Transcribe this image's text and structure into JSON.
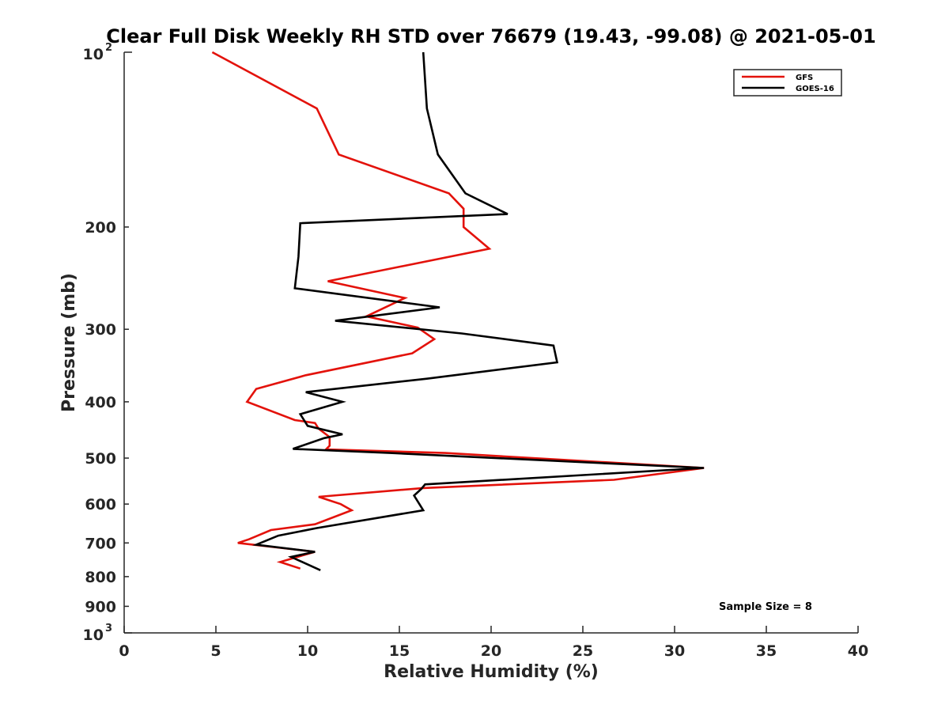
{
  "chart_data": {
    "type": "line",
    "title": "Clear Full Disk Weekly RH STD over 76679 (19.43, -99.08) @ 2021-05-01",
    "xlabel": "Relative Humidity (%)",
    "ylabel": "Pressure (mb)",
    "xlim": [
      0,
      40
    ],
    "ylim": [
      100,
      1000
    ],
    "y_scale": "log",
    "y_reversed": true,
    "grid": false,
    "legend_position": "top-right",
    "x_ticks": [
      "0",
      "5",
      "10",
      "15",
      "20",
      "25",
      "30",
      "35",
      "40"
    ],
    "x_tick_values": [
      0,
      5,
      10,
      15,
      20,
      25,
      30,
      35,
      40
    ],
    "y_ticks": [
      {
        "value": 100,
        "base": "10",
        "exp": "2",
        "label": ""
      },
      {
        "value": 200,
        "base": "",
        "exp": "",
        "label": "200"
      },
      {
        "value": 300,
        "base": "",
        "exp": "",
        "label": "300"
      },
      {
        "value": 400,
        "base": "",
        "exp": "",
        "label": "400"
      },
      {
        "value": 500,
        "base": "",
        "exp": "",
        "label": "500"
      },
      {
        "value": 600,
        "base": "",
        "exp": "",
        "label": "600"
      },
      {
        "value": 700,
        "base": "",
        "exp": "",
        "label": "700"
      },
      {
        "value": 800,
        "base": "",
        "exp": "",
        "label": "800"
      },
      {
        "value": 900,
        "base": "",
        "exp": "",
        "label": "900"
      },
      {
        "value": 1000,
        "base": "10",
        "exp": "3",
        "label": ""
      }
    ],
    "annotation": "Sample Size = 8",
    "series": [
      {
        "name": "GFS",
        "color": "#e3120b",
        "points": [
          [
            4.8,
            100
          ],
          [
            10.5,
            125
          ],
          [
            11.7,
            150
          ],
          [
            17.7,
            175
          ],
          [
            18.5,
            186
          ],
          [
            18.5,
            200
          ],
          [
            19.9,
            218
          ],
          [
            11.1,
            248
          ],
          [
            15.3,
            265
          ],
          [
            13.2,
            285
          ],
          [
            16.0,
            298
          ],
          [
            16.9,
            312
          ],
          [
            15.7,
            330
          ],
          [
            9.9,
            360
          ],
          [
            7.2,
            380
          ],
          [
            6.7,
            400
          ],
          [
            9.3,
            430
          ],
          [
            10.4,
            435
          ],
          [
            10.6,
            445
          ],
          [
            11.2,
            460
          ],
          [
            11.2,
            476
          ],
          [
            11.0,
            483
          ],
          [
            17.5,
            490
          ],
          [
            31.6,
            520
          ],
          [
            26.7,
            545
          ],
          [
            16.3,
            563
          ],
          [
            10.6,
            583
          ],
          [
            11.8,
            600
          ],
          [
            12.4,
            615
          ],
          [
            10.4,
            650
          ],
          [
            8.0,
            665
          ],
          [
            6.8,
            690
          ],
          [
            6.2,
            700
          ],
          [
            10.4,
            725
          ],
          [
            8.5,
            755
          ],
          [
            9.6,
            775
          ]
        ]
      },
      {
        "name": "GOES-16",
        "color": "#000000",
        "points": [
          [
            16.3,
            100
          ],
          [
            16.5,
            125
          ],
          [
            17.1,
            150
          ],
          [
            18.6,
            175
          ],
          [
            20.9,
            190
          ],
          [
            9.6,
            197
          ],
          [
            9.5,
            225
          ],
          [
            9.3,
            255
          ],
          [
            17.2,
            275
          ],
          [
            11.5,
            290
          ],
          [
            18.4,
            305
          ],
          [
            23.4,
            320
          ],
          [
            23.6,
            342
          ],
          [
            16.5,
            365
          ],
          [
            9.9,
            385
          ],
          [
            11.9,
            400
          ],
          [
            9.6,
            420
          ],
          [
            10.0,
            440
          ],
          [
            11.9,
            455
          ],
          [
            10.9,
            462
          ],
          [
            9.2,
            482
          ],
          [
            14.5,
            490
          ],
          [
            31.6,
            520
          ],
          [
            16.4,
            555
          ],
          [
            16.2,
            565
          ],
          [
            15.8,
            580
          ],
          [
            16.3,
            615
          ],
          [
            10.5,
            660
          ],
          [
            8.4,
            680
          ],
          [
            7.2,
            705
          ],
          [
            10.4,
            725
          ],
          [
            9.1,
            740
          ],
          [
            10.7,
            780
          ]
        ]
      }
    ]
  }
}
